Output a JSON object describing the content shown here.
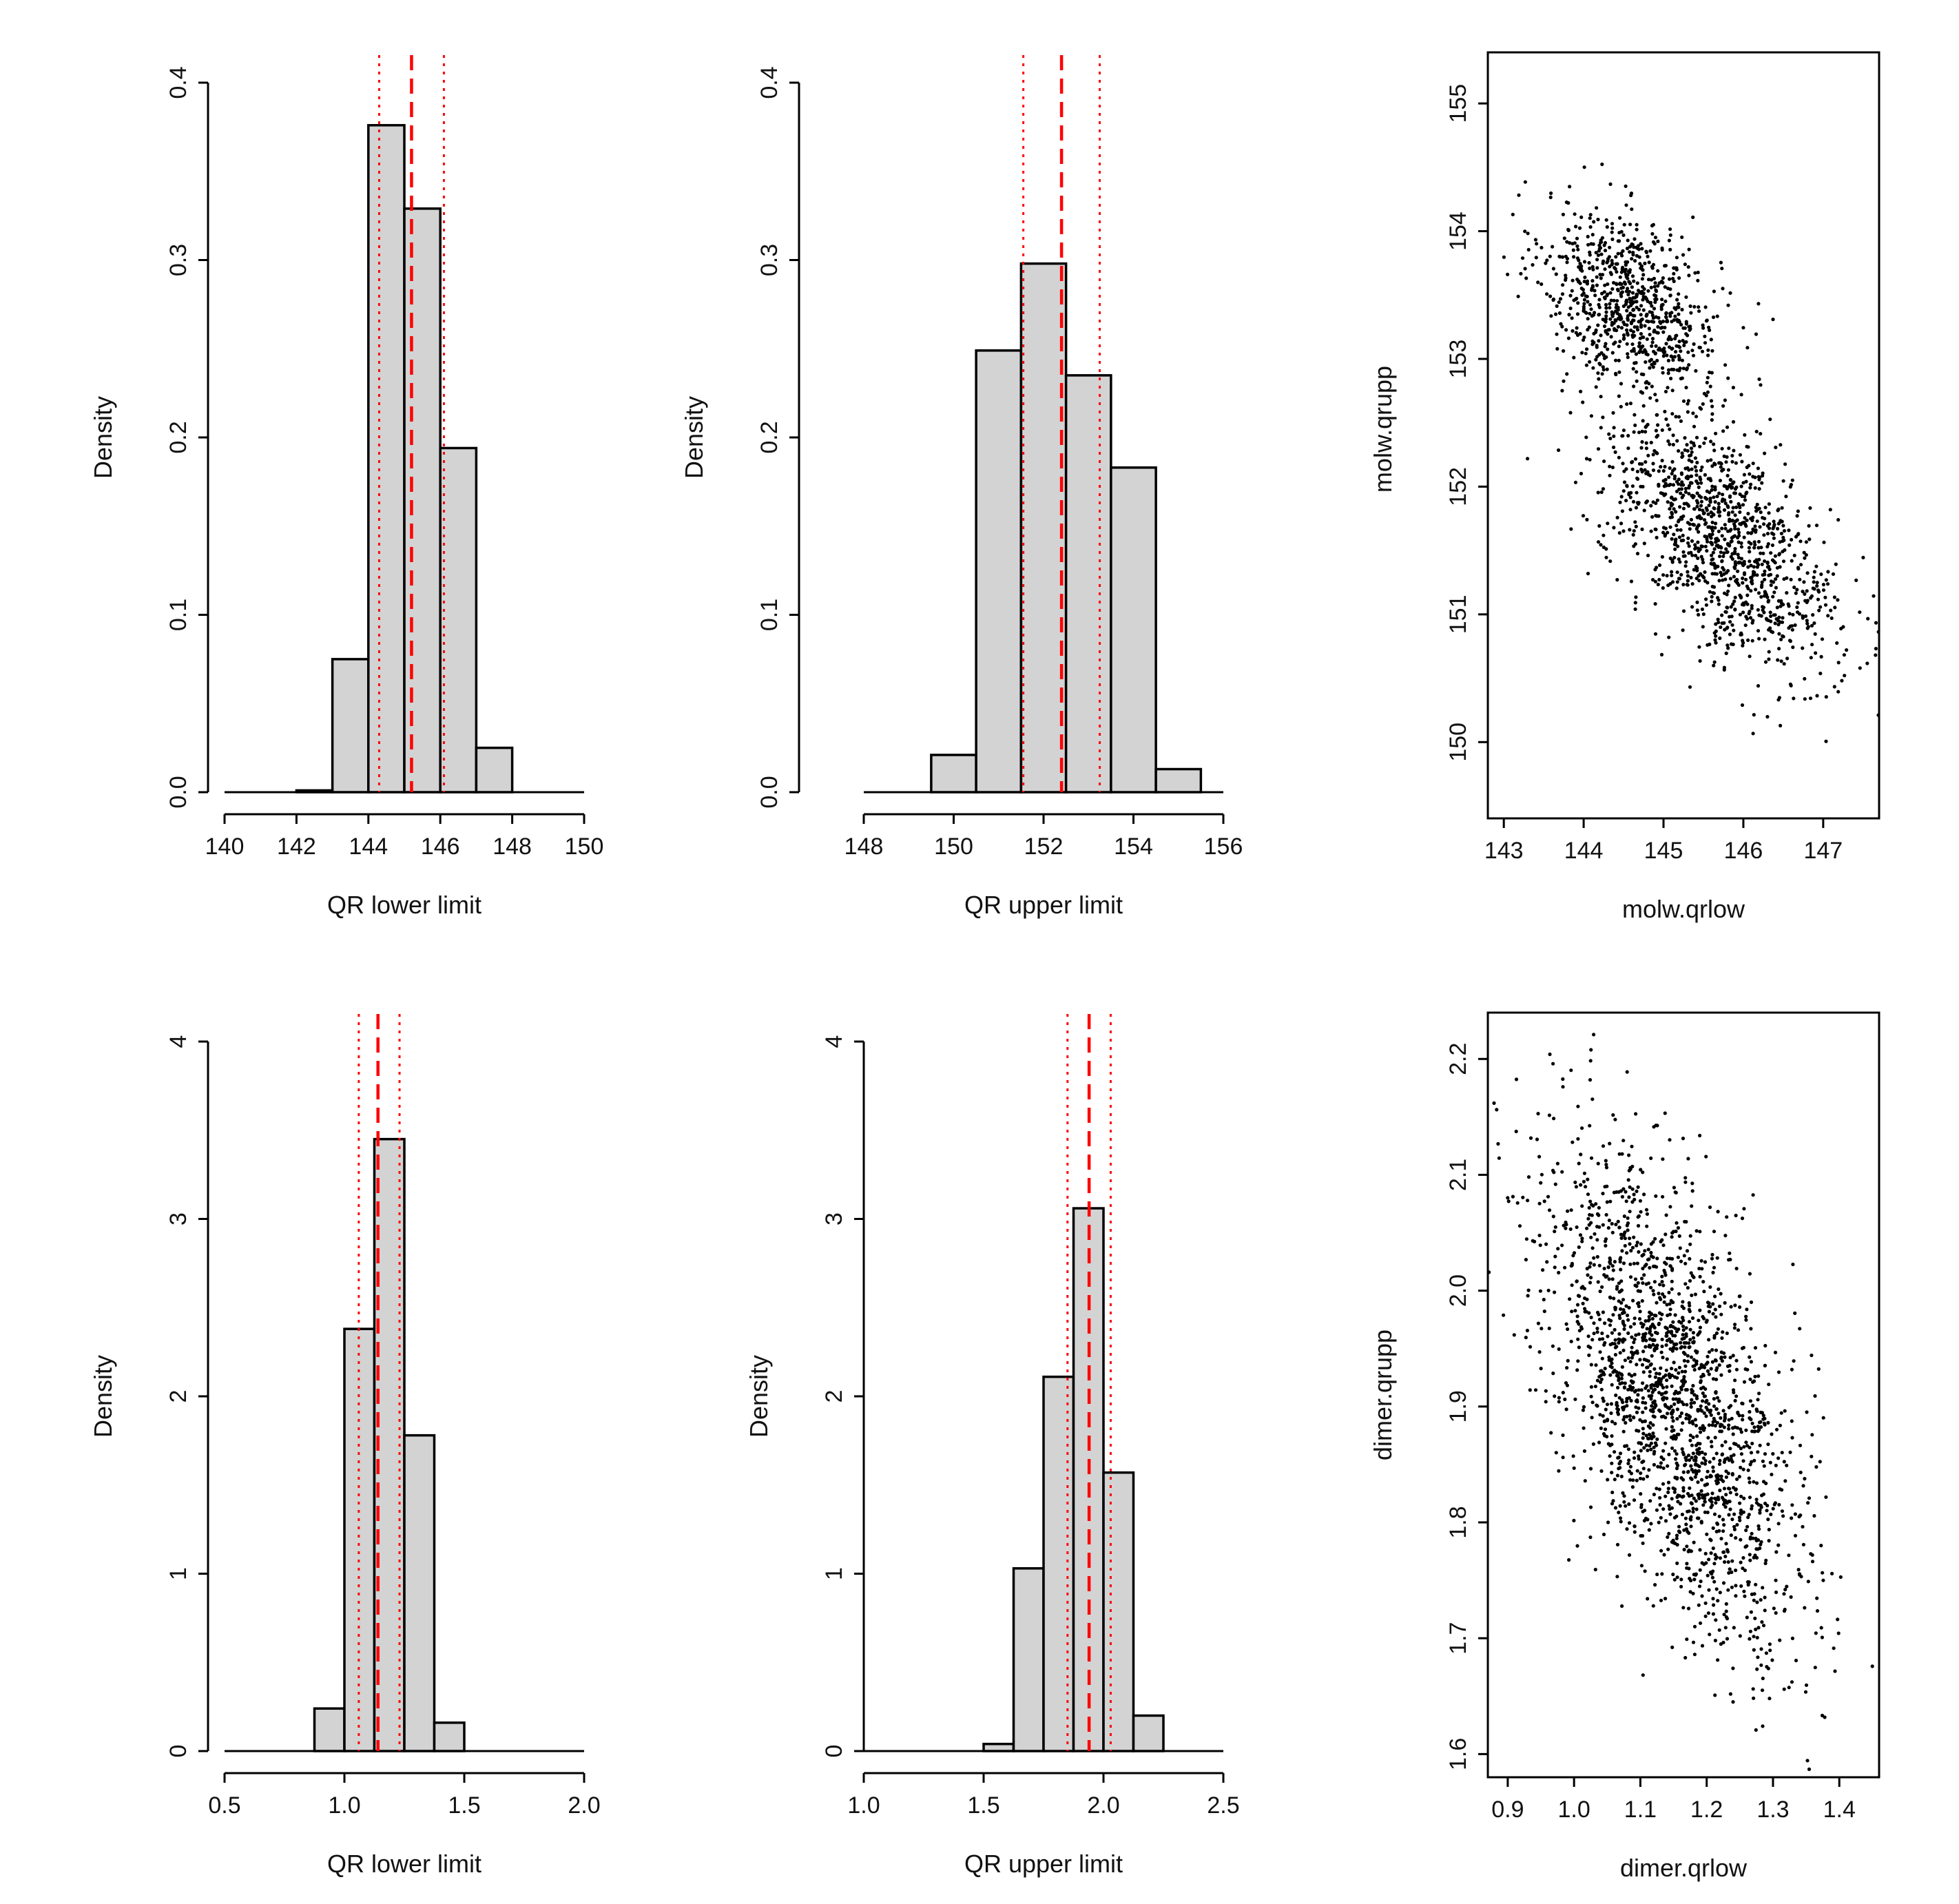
{
  "chart_data": [
    {
      "panel": "row1-col1",
      "type": "bar",
      "xlabel": "QR lower limit",
      "ylabel": "Density",
      "xlim": [
        140,
        150
      ],
      "ylim": [
        0,
        0.4
      ],
      "xticks": [
        "140",
        "142",
        "144",
        "146",
        "148",
        "150"
      ],
      "yticks": [
        "0.0",
        "0.1",
        "0.2",
        "0.3",
        "0.4"
      ],
      "bins": [
        {
          "from": 142,
          "to": 143,
          "density": 0.001
        },
        {
          "from": 143,
          "to": 144,
          "density": 0.075
        },
        {
          "from": 144,
          "to": 145,
          "density": 0.376
        },
        {
          "from": 145,
          "to": 146,
          "density": 0.329
        },
        {
          "from": 146,
          "to": 147,
          "density": 0.194
        },
        {
          "from": 147,
          "to": 148,
          "density": 0.025
        }
      ],
      "reference_lines": {
        "mean": 145.2,
        "lower": 144.3,
        "upper": 146.1
      }
    },
    {
      "panel": "row1-col2",
      "type": "bar",
      "xlabel": "QR upper limit",
      "ylabel": "Density",
      "xlim": [
        148,
        156
      ],
      "ylim": [
        0,
        0.4
      ],
      "xticks": [
        "148",
        "150",
        "152",
        "154",
        "156"
      ],
      "yticks": [
        "0.0",
        "0.1",
        "0.2",
        "0.3",
        "0.4"
      ],
      "bins": [
        {
          "from": 149.5,
          "to": 150.5,
          "density": 0.021
        },
        {
          "from": 150.5,
          "to": 151.5,
          "density": 0.249
        },
        {
          "from": 151.5,
          "to": 152.5,
          "density": 0.298
        },
        {
          "from": 152.5,
          "to": 153.5,
          "density": 0.235
        },
        {
          "from": 153.5,
          "to": 154.5,
          "density": 0.183
        },
        {
          "from": 154.5,
          "to": 155.5,
          "density": 0.013
        }
      ],
      "reference_lines": {
        "mean": 152.4,
        "lower": 151.55,
        "upper": 153.25
      }
    },
    {
      "panel": "row1-col3",
      "type": "scatter",
      "xlabel": "molw.qrlow",
      "ylabel": "molw.qrupp",
      "xlim": [
        142.8,
        147.7
      ],
      "ylim": [
        149.5,
        155.4
      ],
      "xticks": [
        "143",
        "144",
        "145",
        "146",
        "147"
      ],
      "yticks": [
        "150",
        "151",
        "152",
        "153",
        "154",
        "155"
      ],
      "n_points": 2000,
      "clusters": [
        {
          "weight": 0.4,
          "mean": [
            144.6,
            153.45
          ],
          "sd": [
            0.55,
            0.35
          ],
          "corr": -0.35
        },
        {
          "weight": 0.6,
          "mean": [
            145.7,
            151.6
          ],
          "sd": [
            0.75,
            0.55
          ],
          "corr": -0.6
        }
      ]
    },
    {
      "panel": "row2-col1",
      "type": "bar",
      "xlabel": "QR lower limit",
      "ylabel": "Density",
      "xlim": [
        0.5,
        2.0
      ],
      "ylim": [
        0,
        4
      ],
      "xticks": [
        "0.5",
        "1.0",
        "1.5",
        "2.0"
      ],
      "yticks": [
        "0",
        "1",
        "2",
        "3",
        "4"
      ],
      "bins": [
        {
          "from": 0.875,
          "to": 1.0,
          "density": 0.24
        },
        {
          "from": 1.0,
          "to": 1.125,
          "density": 2.38
        },
        {
          "from": 1.125,
          "to": 1.25,
          "density": 3.45
        },
        {
          "from": 1.25,
          "to": 1.375,
          "density": 1.78
        },
        {
          "from": 1.375,
          "to": 1.5,
          "density": 0.16
        }
      ],
      "reference_lines": {
        "mean": 1.14,
        "lower": 1.06,
        "upper": 1.23
      }
    },
    {
      "panel": "row2-col2",
      "type": "bar",
      "xlabel": "QR upper limit",
      "ylabel": "Density",
      "xlim": [
        1.0,
        2.5
      ],
      "ylim": [
        0,
        4
      ],
      "xticks": [
        "1.0",
        "1.5",
        "2.0",
        "2.5"
      ],
      "yticks": [
        "0",
        "1",
        "2",
        "3",
        "4"
      ],
      "bins": [
        {
          "from": 1.5,
          "to": 1.625,
          "density": 0.04
        },
        {
          "from": 1.625,
          "to": 1.75,
          "density": 1.03
        },
        {
          "from": 1.75,
          "to": 1.875,
          "density": 2.11
        },
        {
          "from": 1.875,
          "to": 2.0,
          "density": 3.06
        },
        {
          "from": 2.0,
          "to": 2.125,
          "density": 1.57
        },
        {
          "from": 2.125,
          "to": 2.25,
          "density": 0.2
        }
      ],
      "reference_lines": {
        "mean": 1.94,
        "lower": 1.85,
        "upper": 2.03
      }
    },
    {
      "panel": "row2-col3",
      "type": "scatter",
      "xlabel": "dimer.qrlow",
      "ylabel": "dimer.qrupp",
      "xlim": [
        0.87,
        1.46
      ],
      "ylim": [
        1.58,
        2.24
      ],
      "xticks": [
        "0.9",
        "1.0",
        "1.1",
        "1.2",
        "1.3",
        "1.4"
      ],
      "yticks": [
        "1.6",
        "1.7",
        "1.8",
        "1.9",
        "2.0",
        "2.1",
        "2.2"
      ],
      "n_points": 2000,
      "clusters": [
        {
          "weight": 1.0,
          "mean": [
            1.15,
            1.91
          ],
          "sd": [
            0.095,
            0.105
          ],
          "corr": -0.6
        }
      ]
    }
  ]
}
